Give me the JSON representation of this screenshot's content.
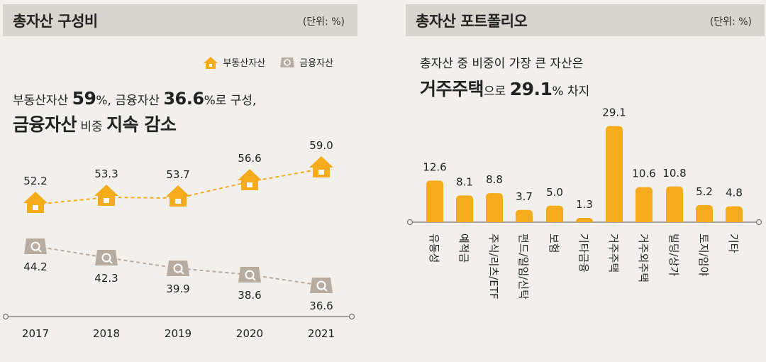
{
  "left": {
    "title": "총자산 구성비",
    "unit": "(단위: %)",
    "legend": [
      {
        "label": "부동산자산",
        "icon": "house-icon",
        "color": "#f5ab1c"
      },
      {
        "label": "금융자산",
        "icon": "money-search-icon",
        "color": "#b8aca0"
      }
    ],
    "headline": {
      "p1": "부동산자산 ",
      "v1": "59",
      "p2": "%, 금융자산 ",
      "v2": "36.6",
      "p3": "%로 구성,",
      "b1": "금융자산",
      "p4": " 비중 ",
      "b2": "지속 감소"
    }
  },
  "right": {
    "title": "총자산 포트폴리오",
    "unit": "(단위: %)",
    "headline": {
      "line1": "총자산 중 비중이 가장 큰 자산은",
      "b1": "거주주택",
      "p1": "으로 ",
      "v1": "29.1",
      "p2": "% 차지"
    }
  },
  "chart_data": [
    {
      "type": "line",
      "x": [
        "2017",
        "2018",
        "2019",
        "2020",
        "2021"
      ],
      "series": [
        {
          "name": "부동산자산",
          "values": [
            52.2,
            53.3,
            53.7,
            56.6,
            59.0
          ],
          "labels": [
            "52.2",
            "53.3",
            "53.7",
            "56.6",
            "59.0"
          ],
          "color": "#f5ab1c"
        },
        {
          "name": "금융자산",
          "values": [
            44.2,
            42.3,
            39.9,
            38.6,
            36.6
          ],
          "labels": [
            "44.2",
            "42.3",
            "39.9",
            "38.6",
            "36.6"
          ],
          "color": "#b8aca0"
        }
      ]
    },
    {
      "type": "bar",
      "categories": [
        "유동성",
        "예적금",
        "주식/리츠/ETF",
        "펀드/일임/신탁",
        "보험",
        "기타금융",
        "거주주택",
        "거주외주택",
        "빌딩/상가",
        "토지/임야",
        "기타"
      ],
      "values": [
        12.6,
        8.1,
        8.8,
        3.7,
        5.0,
        1.3,
        29.1,
        10.6,
        10.8,
        5.2,
        4.8
      ],
      "labels": [
        "12.6",
        "8.1",
        "8.8",
        "3.7",
        "5.0",
        "1.3",
        "29.1",
        "10.6",
        "10.8",
        "5.2",
        "4.8"
      ],
      "color": "#f5ab1c"
    }
  ]
}
